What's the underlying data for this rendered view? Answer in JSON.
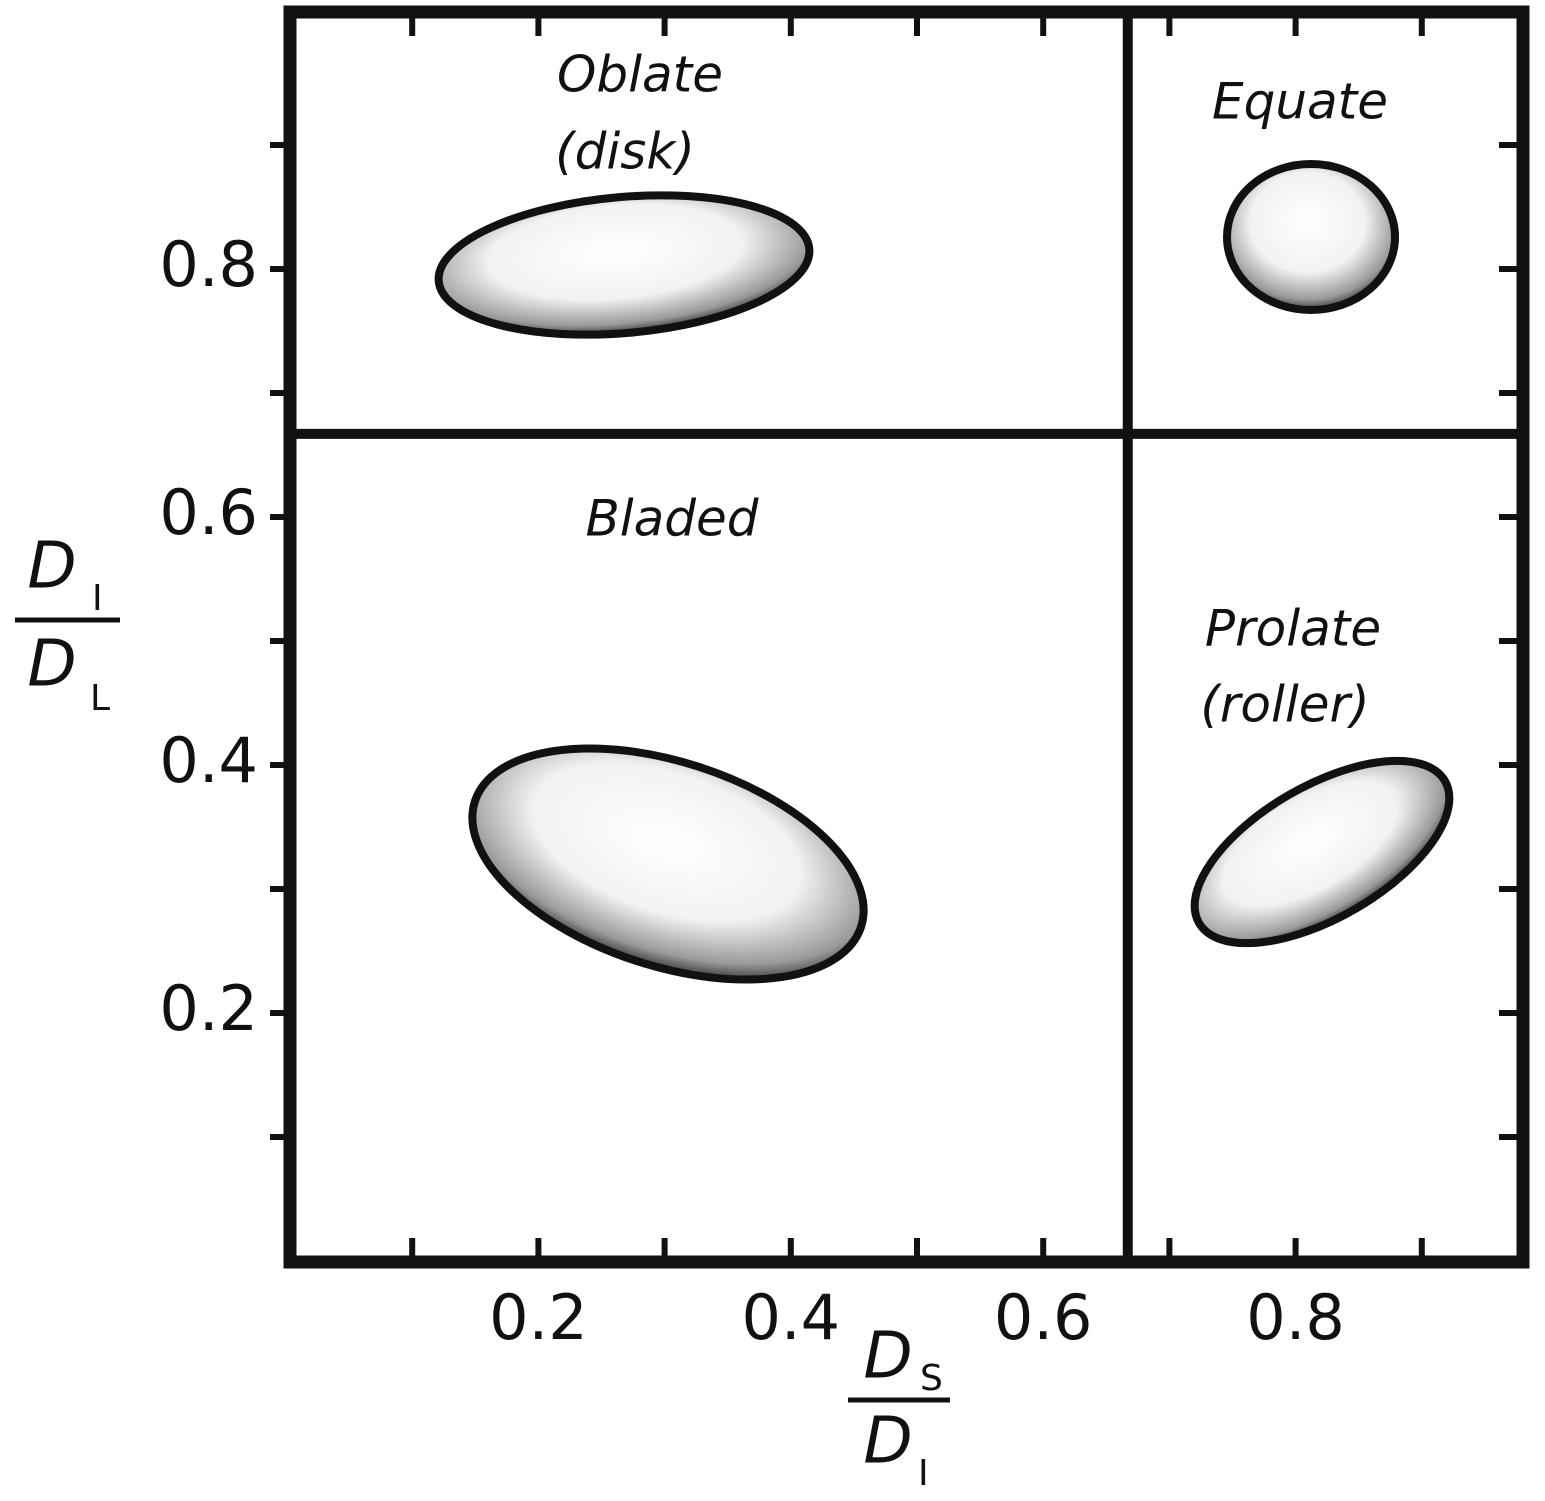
{
  "chart_data": {
    "type": "zingg",
    "xlim": [
      0,
      0.98
    ],
    "ylim": [
      0,
      1
    ],
    "xticks": [
      0.2,
      0.4,
      0.6,
      0.8
    ],
    "yticks": [
      0.2,
      0.4,
      0.6,
      0.8
    ],
    "xminor_ticks": [
      0.1,
      0.3,
      0.5,
      0.7,
      0.9
    ],
    "yminor_ticks": [
      0.1,
      0.3,
      0.5,
      0.7,
      0.9
    ],
    "divider": 0.667,
    "x_label": {
      "numerator": "D",
      "numerator_sub": "S",
      "denominator": "D",
      "denominator_sub": "I"
    },
    "y_label": {
      "numerator": "D",
      "numerator_sub": "I",
      "denominator": "D",
      "denominator_sub": "L"
    },
    "regions": [
      {
        "name": "Oblate",
        "note": "(disk)"
      },
      {
        "name": "Equate"
      },
      {
        "name": "Bladed"
      },
      {
        "name": "Prolate",
        "note": "(roller)"
      }
    ]
  }
}
